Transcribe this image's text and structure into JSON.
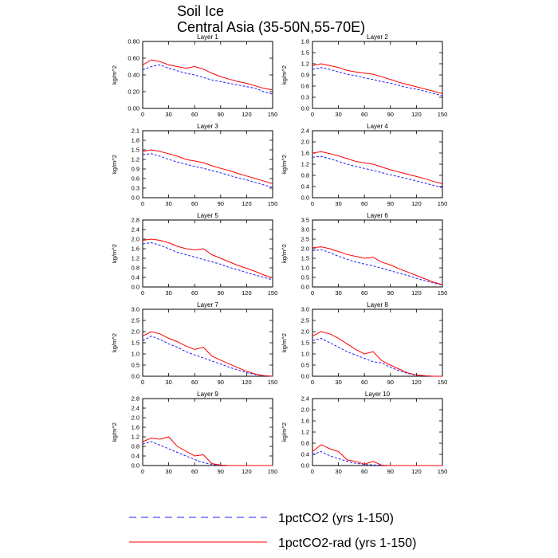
{
  "title": "Soil Ice",
  "subtitle": "Central Asia (35-50N,55-70E)",
  "legend": {
    "placement": "bottom-center",
    "entries": [
      {
        "label": "1pctCO2 (yrs 1-150)",
        "color": "#2020ff",
        "style": "dashed"
      },
      {
        "label": "1pctCO2-rad (yrs 1-150)",
        "color": "#ff0000",
        "style": "solid"
      }
    ]
  },
  "chart_data": [
    {
      "panel": "Layer 1",
      "type": "line",
      "title": "Layer 1",
      "xlabel": "",
      "ylabel": "kg/m^2",
      "xlim": [
        0,
        150
      ],
      "ylim": [
        0,
        0.8
      ],
      "xticks": [
        "0",
        "30",
        "60",
        "90",
        "120",
        "150"
      ],
      "yticks": [
        "0.00",
        "0.20",
        "0.40",
        "0.60",
        "0.80"
      ],
      "series": [
        {
          "name": "1pctCO2 (yrs 1-150)",
          "x": [
            0,
            10,
            20,
            30,
            40,
            50,
            60,
            70,
            80,
            90,
            100,
            110,
            120,
            130,
            140,
            150
          ],
          "y": [
            0.46,
            0.5,
            0.52,
            0.48,
            0.45,
            0.42,
            0.4,
            0.37,
            0.34,
            0.32,
            0.3,
            0.28,
            0.26,
            0.24,
            0.2,
            0.17
          ]
        },
        {
          "name": "1pctCO2-rad (yrs 1-150)",
          "x": [
            0,
            10,
            20,
            30,
            40,
            50,
            60,
            70,
            80,
            90,
            100,
            110,
            120,
            130,
            140,
            150
          ],
          "y": [
            0.52,
            0.58,
            0.56,
            0.52,
            0.5,
            0.48,
            0.5,
            0.47,
            0.42,
            0.38,
            0.35,
            0.32,
            0.3,
            0.27,
            0.24,
            0.22
          ]
        }
      ]
    },
    {
      "panel": "Layer 2",
      "type": "line",
      "title": "Layer 2",
      "xlabel": "",
      "ylabel": "kg/m^2",
      "xlim": [
        0,
        150
      ],
      "ylim": [
        0,
        1.8
      ],
      "xticks": [
        "0",
        "30",
        "60",
        "90",
        "120",
        "150"
      ],
      "yticks": [
        "0.0",
        "0.3",
        "0.6",
        "0.9",
        "1.2",
        "1.5",
        "1.8"
      ],
      "series": [
        {
          "name": "1pctCO2 (yrs 1-150)",
          "x": [
            0,
            10,
            20,
            30,
            40,
            50,
            60,
            70,
            80,
            90,
            100,
            110,
            120,
            130,
            140,
            150
          ],
          "y": [
            1.05,
            1.1,
            1.05,
            0.98,
            0.92,
            0.88,
            0.82,
            0.78,
            0.72,
            0.68,
            0.62,
            0.56,
            0.52,
            0.46,
            0.4,
            0.34
          ]
        },
        {
          "name": "1pctCO2-rad (yrs 1-150)",
          "x": [
            0,
            10,
            20,
            30,
            40,
            50,
            60,
            70,
            80,
            90,
            100,
            110,
            120,
            130,
            140,
            150
          ],
          "y": [
            1.15,
            1.2,
            1.15,
            1.1,
            1.02,
            0.98,
            0.95,
            0.92,
            0.85,
            0.78,
            0.7,
            0.64,
            0.58,
            0.52,
            0.46,
            0.4
          ]
        }
      ]
    },
    {
      "panel": "Layer 3",
      "type": "line",
      "title": "Layer 3",
      "xlabel": "",
      "ylabel": "kg/m^2",
      "xlim": [
        0,
        150
      ],
      "ylim": [
        0,
        2.1
      ],
      "xticks": [
        "0",
        "30",
        "60",
        "90",
        "120",
        "150"
      ],
      "yticks": [
        "0.0",
        "0.3",
        "0.6",
        "0.9",
        "1.2",
        "1.5",
        "1.8",
        "2.1"
      ],
      "series": [
        {
          "name": "1pctCO2 (yrs 1-150)",
          "x": [
            0,
            10,
            20,
            30,
            40,
            50,
            60,
            70,
            80,
            90,
            100,
            110,
            120,
            130,
            140,
            150
          ],
          "y": [
            1.35,
            1.38,
            1.3,
            1.2,
            1.12,
            1.05,
            0.98,
            0.92,
            0.85,
            0.78,
            0.7,
            0.62,
            0.56,
            0.48,
            0.4,
            0.32
          ]
        },
        {
          "name": "1pctCO2-rad (yrs 1-150)",
          "x": [
            0,
            10,
            20,
            30,
            40,
            50,
            60,
            70,
            80,
            90,
            100,
            110,
            120,
            130,
            140,
            150
          ],
          "y": [
            1.45,
            1.5,
            1.45,
            1.38,
            1.3,
            1.2,
            1.15,
            1.1,
            1.0,
            0.92,
            0.85,
            0.76,
            0.68,
            0.6,
            0.52,
            0.44
          ]
        }
      ]
    },
    {
      "panel": "Layer 4",
      "type": "line",
      "title": "Layer 4",
      "xlabel": "",
      "ylabel": "kg/m^2",
      "xlim": [
        0,
        150
      ],
      "ylim": [
        0,
        2.4
      ],
      "xticks": [
        "0",
        "30",
        "60",
        "90",
        "120",
        "150"
      ],
      "yticks": [
        "0.0",
        "0.4",
        "0.8",
        "1.2",
        "1.6",
        "2.0",
        "2.4"
      ],
      "series": [
        {
          "name": "1pctCO2 (yrs 1-150)",
          "x": [
            0,
            10,
            20,
            30,
            40,
            50,
            60,
            70,
            80,
            90,
            100,
            110,
            120,
            130,
            140,
            150
          ],
          "y": [
            1.45,
            1.48,
            1.4,
            1.3,
            1.2,
            1.12,
            1.05,
            0.98,
            0.9,
            0.82,
            0.75,
            0.68,
            0.6,
            0.52,
            0.44,
            0.36
          ]
        },
        {
          "name": "1pctCO2-rad (yrs 1-150)",
          "x": [
            0,
            10,
            20,
            30,
            40,
            50,
            60,
            70,
            80,
            90,
            100,
            110,
            120,
            130,
            140,
            150
          ],
          "y": [
            1.6,
            1.65,
            1.58,
            1.5,
            1.4,
            1.3,
            1.25,
            1.2,
            1.1,
            1.0,
            0.92,
            0.84,
            0.76,
            0.68,
            0.58,
            0.5
          ]
        }
      ]
    },
    {
      "panel": "Layer 5",
      "type": "line",
      "title": "Layer 5",
      "xlabel": "",
      "ylabel": "kg/m^2",
      "xlim": [
        0,
        150
      ],
      "ylim": [
        0,
        2.8
      ],
      "xticks": [
        "0",
        "30",
        "60",
        "90",
        "120",
        "150"
      ],
      "yticks": [
        "0.0",
        "0.4",
        "0.8",
        "1.2",
        "1.6",
        "2.0",
        "2.4",
        "2.8"
      ],
      "series": [
        {
          "name": "1pctCO2 (yrs 1-150)",
          "x": [
            0,
            10,
            20,
            30,
            40,
            50,
            60,
            70,
            80,
            90,
            100,
            110,
            120,
            130,
            140,
            150
          ],
          "y": [
            1.8,
            1.85,
            1.75,
            1.6,
            1.45,
            1.35,
            1.25,
            1.15,
            1.05,
            0.95,
            0.82,
            0.72,
            0.6,
            0.5,
            0.4,
            0.3
          ]
        },
        {
          "name": "1pctCO2-rad (yrs 1-150)",
          "x": [
            0,
            10,
            20,
            30,
            40,
            50,
            60,
            70,
            80,
            90,
            100,
            110,
            120,
            130,
            140,
            150
          ],
          "y": [
            1.95,
            2.0,
            1.95,
            1.85,
            1.7,
            1.6,
            1.55,
            1.6,
            1.35,
            1.2,
            1.05,
            0.9,
            0.78,
            0.65,
            0.5,
            0.38
          ]
        }
      ]
    },
    {
      "panel": "Layer 6",
      "type": "line",
      "title": "Layer 6",
      "xlabel": "",
      "ylabel": "kg/m^2",
      "xlim": [
        0,
        150
      ],
      "ylim": [
        0,
        3.5
      ],
      "xticks": [
        "0",
        "30",
        "60",
        "90",
        "120",
        "150"
      ],
      "yticks": [
        "0.0",
        "0.5",
        "1.0",
        "1.5",
        "2.0",
        "2.5",
        "3.0",
        "3.5"
      ],
      "series": [
        {
          "name": "1pctCO2 (yrs 1-150)",
          "x": [
            0,
            10,
            20,
            30,
            40,
            50,
            60,
            70,
            80,
            90,
            100,
            110,
            120,
            130,
            140,
            150
          ],
          "y": [
            1.9,
            1.95,
            1.8,
            1.6,
            1.45,
            1.3,
            1.2,
            1.1,
            0.98,
            0.85,
            0.72,
            0.6,
            0.45,
            0.32,
            0.2,
            0.1
          ]
        },
        {
          "name": "1pctCO2-rad (yrs 1-150)",
          "x": [
            0,
            10,
            20,
            30,
            40,
            50,
            60,
            70,
            80,
            90,
            100,
            110,
            120,
            130,
            140,
            150
          ],
          "y": [
            2.05,
            2.1,
            2.0,
            1.85,
            1.7,
            1.6,
            1.5,
            1.55,
            1.3,
            1.15,
            0.95,
            0.78,
            0.6,
            0.42,
            0.25,
            0.12
          ]
        }
      ]
    },
    {
      "panel": "Layer 7",
      "type": "line",
      "title": "Layer 7",
      "xlabel": "",
      "ylabel": "kg/m^2",
      "xlim": [
        0,
        150
      ],
      "ylim": [
        0,
        3.0
      ],
      "xticks": [
        "0",
        "30",
        "60",
        "90",
        "120",
        "150"
      ],
      "yticks": [
        "0.0",
        "0.5",
        "1.0",
        "1.5",
        "2.0",
        "2.5",
        "3.0"
      ],
      "series": [
        {
          "name": "1pctCO2 (yrs 1-150)",
          "x": [
            0,
            10,
            20,
            30,
            40,
            50,
            60,
            70,
            80,
            90,
            100,
            110,
            120,
            130,
            140,
            150
          ],
          "y": [
            1.6,
            1.8,
            1.65,
            1.45,
            1.3,
            1.1,
            0.95,
            0.82,
            0.68,
            0.55,
            0.4,
            0.28,
            0.16,
            0.08,
            0.02,
            0.0
          ]
        },
        {
          "name": "1pctCO2-rad (yrs 1-150)",
          "x": [
            0,
            10,
            20,
            30,
            40,
            50,
            60,
            70,
            80,
            90,
            100,
            110,
            120,
            130,
            140,
            150
          ],
          "y": [
            1.8,
            2.0,
            1.9,
            1.7,
            1.55,
            1.35,
            1.2,
            1.3,
            0.9,
            0.72,
            0.55,
            0.38,
            0.22,
            0.1,
            0.03,
            0.0
          ]
        }
      ]
    },
    {
      "panel": "Layer 8",
      "type": "line",
      "title": "Layer 8",
      "xlabel": "",
      "ylabel": "kg/m^2",
      "xlim": [
        0,
        150
      ],
      "ylim": [
        0,
        3.0
      ],
      "xticks": [
        "0",
        "30",
        "60",
        "90",
        "120",
        "150"
      ],
      "yticks": [
        "0.0",
        "0.5",
        "1.0",
        "1.5",
        "2.0",
        "2.5",
        "3.0"
      ],
      "series": [
        {
          "name": "1pctCO2 (yrs 1-150)",
          "x": [
            0,
            10,
            20,
            30,
            40,
            50,
            60,
            70,
            80,
            90,
            100,
            110,
            120,
            130,
            140,
            150
          ],
          "y": [
            1.6,
            1.7,
            1.5,
            1.3,
            1.1,
            0.95,
            0.8,
            0.65,
            0.6,
            0.4,
            0.25,
            0.12,
            0.05,
            0.02,
            0.0,
            0.0
          ]
        },
        {
          "name": "1pctCO2-rad (yrs 1-150)",
          "x": [
            0,
            10,
            20,
            30,
            40,
            50,
            60,
            70,
            80,
            90,
            100,
            110,
            120,
            130,
            140,
            150
          ],
          "y": [
            1.8,
            2.0,
            1.9,
            1.7,
            1.45,
            1.2,
            1.0,
            1.1,
            0.7,
            0.5,
            0.32,
            0.15,
            0.06,
            0.02,
            0.0,
            0.0
          ]
        }
      ]
    },
    {
      "panel": "Layer 9",
      "type": "line",
      "title": "Layer 9",
      "xlabel": "",
      "ylabel": "kg/m^2",
      "xlim": [
        0,
        150
      ],
      "ylim": [
        0,
        2.8
      ],
      "xticks": [
        "0",
        "30",
        "60",
        "90",
        "120",
        "150"
      ],
      "yticks": [
        "0.0",
        "0.4",
        "0.8",
        "1.2",
        "1.6",
        "2.0",
        "2.4",
        "2.8"
      ],
      "series": [
        {
          "name": "1pctCO2 (yrs 1-150)",
          "x": [
            0,
            10,
            20,
            30,
            40,
            50,
            60,
            70,
            80,
            90,
            100,
            110,
            120,
            130,
            140,
            150
          ],
          "y": [
            0.9,
            1.0,
            0.85,
            0.7,
            0.55,
            0.4,
            0.25,
            0.12,
            0.05,
            0.01,
            0.0,
            0.0,
            0.0,
            0.0,
            0.0,
            0.0
          ]
        },
        {
          "name": "1pctCO2-rad (yrs 1-150)",
          "x": [
            0,
            10,
            20,
            30,
            40,
            50,
            60,
            70,
            80,
            90,
            100,
            110,
            120,
            130,
            140,
            150
          ],
          "y": [
            1.0,
            1.15,
            1.1,
            1.2,
            0.8,
            0.6,
            0.4,
            0.45,
            0.08,
            0.02,
            0.0,
            0.0,
            0.0,
            0.0,
            0.0,
            0.0
          ]
        }
      ]
    },
    {
      "panel": "Layer 10",
      "type": "line",
      "title": "Layer 10",
      "xlabel": "",
      "ylabel": "kg/m^2",
      "xlim": [
        0,
        150
      ],
      "ylim": [
        0,
        2.4
      ],
      "xticks": [
        "0",
        "30",
        "60",
        "90",
        "120",
        "150"
      ],
      "yticks": [
        "0.0",
        "0.4",
        "0.8",
        "1.2",
        "1.6",
        "2.0",
        "2.4"
      ],
      "series": [
        {
          "name": "1pctCO2 (yrs 1-150)",
          "x": [
            0,
            10,
            20,
            30,
            40,
            50,
            60,
            70,
            80,
            90,
            100,
            110,
            120,
            130,
            140,
            150
          ],
          "y": [
            0.4,
            0.5,
            0.35,
            0.25,
            0.15,
            0.08,
            0.04,
            0.02,
            0.01,
            0.0,
            0.0,
            0.0,
            0.0,
            0.0,
            0.0,
            0.0
          ]
        },
        {
          "name": "1pctCO2-rad (yrs 1-150)",
          "x": [
            0,
            10,
            20,
            30,
            40,
            50,
            60,
            70,
            80,
            90,
            100,
            110,
            120,
            130,
            140,
            150
          ],
          "y": [
            0.5,
            0.75,
            0.6,
            0.5,
            0.2,
            0.15,
            0.05,
            0.15,
            0.01,
            0.0,
            0.0,
            0.0,
            0.0,
            0.0,
            0.0,
            0.0
          ]
        }
      ]
    }
  ]
}
